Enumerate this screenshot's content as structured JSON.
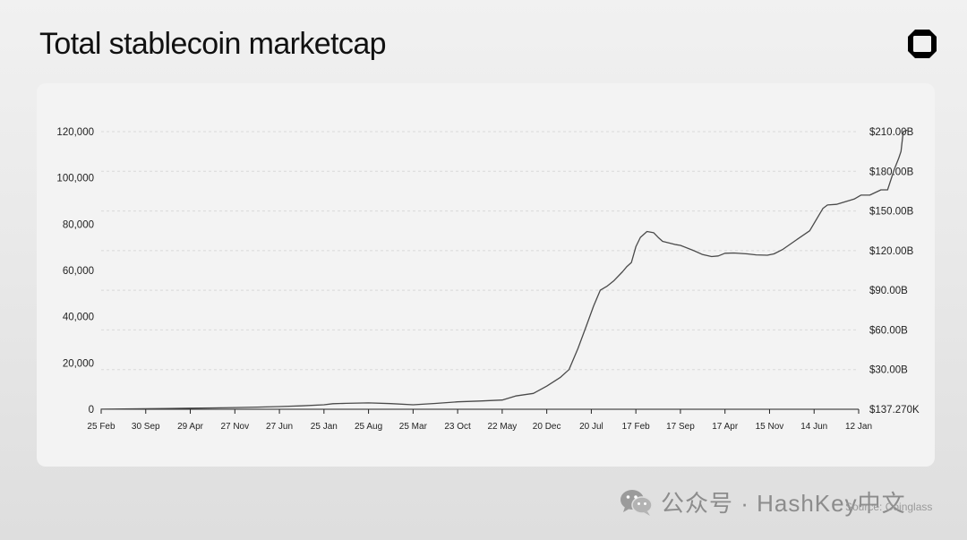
{
  "page": {
    "title": "Total stablecoin marketcap",
    "logo_icon": "octagon-logo-icon",
    "source": "Source: Coinglass",
    "watermark_icon": "wechat-icon",
    "watermark": "公众号 · HashKey中文"
  },
  "colors": {
    "line": "#4a4a4a",
    "grid": "#d9d9d9",
    "axis": "#222222",
    "card": "#f3f3f3"
  },
  "chart_data": {
    "type": "line",
    "title": "Total stablecoin marketcap",
    "xlabel": "",
    "ylabel": "",
    "grid": true,
    "legend": "none",
    "x_ticks": [
      "25 Feb",
      "30 Sep",
      "29 Apr",
      "27 Nov",
      "27 Jun",
      "25 Jan",
      "25 Aug",
      "25 Mar",
      "23 Oct",
      "22 May",
      "20 Dec",
      "20 Jul",
      "17 Feb",
      "17 Sep",
      "17 Apr",
      "15 Nov",
      "14 Jun",
      "12 Jan"
    ],
    "y_left_ticks": [
      "0",
      "20,000",
      "40,000",
      "60,000",
      "80,000",
      "100,000",
      "120,000"
    ],
    "y_left_tick_values": [
      0,
      20000,
      40000,
      60000,
      80000,
      100000,
      120000
    ],
    "ylim_left": [
      0,
      120000
    ],
    "y_right_ticks": [
      "$137.270K",
      "$30.00B",
      "$60.00B",
      "$90.00B",
      "$120.00B",
      "$150.00B",
      "$180.00B",
      "$210.00B"
    ],
    "y_right_tick_values": [
      0.00013727,
      30,
      60,
      90,
      120,
      150,
      180,
      210
    ],
    "ylim_right_billions": [
      0,
      210
    ],
    "series": [
      {
        "values_billions": [
          [
            0,
            0.1
          ],
          [
            0.5,
            0.2
          ],
          [
            1,
            0.4
          ],
          [
            1.5,
            0.6
          ],
          [
            2,
            0.8
          ],
          [
            2.5,
            1.0
          ],
          [
            3,
            1.3
          ],
          [
            3.5,
            1.6
          ],
          [
            4,
            2.0
          ],
          [
            4.5,
            2.6
          ],
          [
            5,
            3.4
          ],
          [
            5.2,
            4.2
          ],
          [
            5.5,
            4.5
          ],
          [
            6,
            4.8
          ],
          [
            6.5,
            4.3
          ],
          [
            7,
            3.4
          ],
          [
            7.5,
            4.4
          ],
          [
            8,
            5.6
          ],
          [
            8.5,
            6.2
          ],
          [
            9,
            7.0
          ],
          [
            9.3,
            10.0
          ],
          [
            9.7,
            12.0
          ],
          [
            10,
            17.5
          ],
          [
            10.3,
            24.0
          ],
          [
            10.5,
            30.0
          ],
          [
            10.7,
            46.0
          ],
          [
            10.9,
            64.0
          ],
          [
            11.05,
            78.0
          ],
          [
            11.2,
            90.0
          ],
          [
            11.35,
            93.0
          ],
          [
            11.5,
            97.0
          ],
          [
            11.7,
            104.0
          ],
          [
            11.8,
            108.0
          ],
          [
            11.9,
            111.0
          ],
          [
            12.0,
            123.0
          ],
          [
            12.1,
            130.0
          ],
          [
            12.25,
            134.5
          ],
          [
            12.4,
            133.5
          ],
          [
            12.5,
            130.0
          ],
          [
            12.6,
            127.0
          ],
          [
            12.9,
            124.5
          ],
          [
            13.0,
            124.0
          ],
          [
            13.3,
            120.0
          ],
          [
            13.5,
            117.0
          ],
          [
            13.7,
            115.5
          ],
          [
            13.85,
            116.0
          ],
          [
            14.0,
            118.0
          ],
          [
            14.2,
            118.2
          ],
          [
            14.5,
            117.5
          ],
          [
            14.7,
            116.8
          ],
          [
            14.95,
            116.5
          ],
          [
            15.1,
            117.5
          ],
          [
            15.3,
            121.0
          ],
          [
            15.6,
            128.0
          ],
          [
            15.9,
            135.0
          ],
          [
            16.2,
            152.0
          ],
          [
            16.3,
            154.5
          ],
          [
            16.5,
            155.0
          ],
          [
            16.7,
            157.0
          ],
          [
            16.9,
            159.0
          ],
          [
            17.05,
            162.0
          ],
          [
            17.25,
            162.0
          ],
          [
            17.5,
            166.0
          ],
          [
            17.65,
            166.0
          ],
          [
            17.8,
            181.5
          ],
          [
            17.9,
            190.0
          ],
          [
            17.95,
            195.0
          ],
          [
            18.0,
            210.0
          ],
          [
            18.08,
            211.0
          ]
        ]
      }
    ]
  }
}
